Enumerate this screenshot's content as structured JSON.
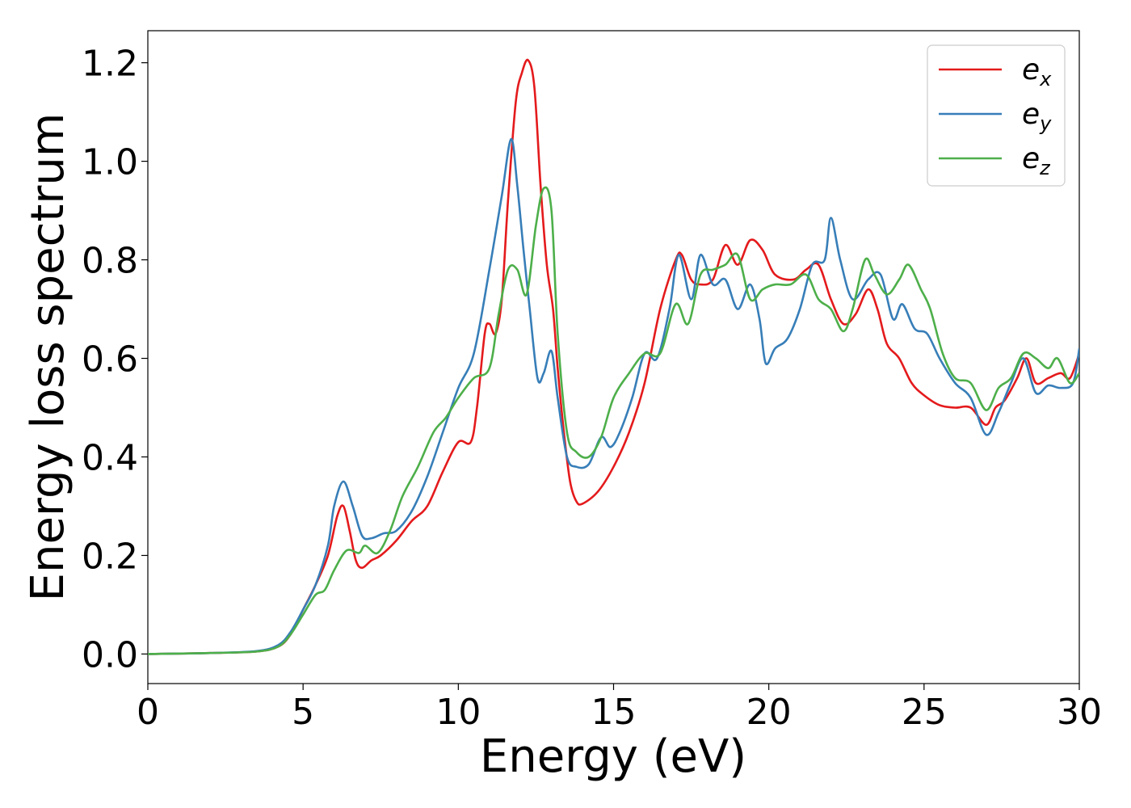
{
  "chart_data": {
    "type": "line",
    "title": "",
    "xlabel": "Energy (eV)",
    "ylabel": "Energy loss spectrum",
    "xlim": [
      0,
      30
    ],
    "ylim": [
      -0.06,
      1.265
    ],
    "xticks": [
      0,
      5,
      10,
      15,
      20,
      25,
      30
    ],
    "xtick_labels": [
      "0",
      "5",
      "10",
      "15",
      "20",
      "25",
      "30"
    ],
    "yticks": [
      0.0,
      0.2,
      0.4,
      0.6,
      0.8,
      1.0,
      1.2
    ],
    "ytick_labels": [
      "0.0",
      "0.2",
      "0.4",
      "0.6",
      "0.8",
      "1.0",
      "1.2"
    ],
    "grid": false,
    "legend_position": "top-right",
    "series": [
      {
        "name": "e_x",
        "legend_base": "e",
        "legend_sub": "x",
        "color": "#e41a1c",
        "points": [
          [
            0,
            0.0
          ],
          [
            2,
            0.002
          ],
          [
            3.5,
            0.005
          ],
          [
            4.2,
            0.015
          ],
          [
            4.6,
            0.04
          ],
          [
            5.0,
            0.09
          ],
          [
            5.4,
            0.14
          ],
          [
            5.8,
            0.2
          ],
          [
            6.1,
            0.28
          ],
          [
            6.3,
            0.3
          ],
          [
            6.5,
            0.25
          ],
          [
            6.7,
            0.19
          ],
          [
            6.9,
            0.175
          ],
          [
            7.2,
            0.19
          ],
          [
            7.5,
            0.2
          ],
          [
            8.0,
            0.23
          ],
          [
            8.5,
            0.27
          ],
          [
            9.0,
            0.3
          ],
          [
            9.5,
            0.37
          ],
          [
            10.0,
            0.43
          ],
          [
            10.4,
            0.43
          ],
          [
            10.6,
            0.5
          ],
          [
            10.85,
            0.65
          ],
          [
            11.0,
            0.67
          ],
          [
            11.2,
            0.65
          ],
          [
            11.4,
            0.72
          ],
          [
            11.6,
            0.92
          ],
          [
            11.85,
            1.12
          ],
          [
            12.05,
            1.18
          ],
          [
            12.25,
            1.205
          ],
          [
            12.45,
            1.15
          ],
          [
            12.65,
            0.95
          ],
          [
            12.85,
            0.79
          ],
          [
            13.05,
            0.7
          ],
          [
            13.2,
            0.58
          ],
          [
            13.4,
            0.45
          ],
          [
            13.6,
            0.35
          ],
          [
            13.8,
            0.31
          ],
          [
            14.0,
            0.305
          ],
          [
            14.5,
            0.33
          ],
          [
            15.0,
            0.38
          ],
          [
            15.5,
            0.45
          ],
          [
            16.0,
            0.55
          ],
          [
            16.5,
            0.7
          ],
          [
            17.0,
            0.8
          ],
          [
            17.2,
            0.81
          ],
          [
            17.5,
            0.76
          ],
          [
            17.8,
            0.75
          ],
          [
            18.2,
            0.76
          ],
          [
            18.6,
            0.83
          ],
          [
            19.0,
            0.79
          ],
          [
            19.4,
            0.84
          ],
          [
            19.8,
            0.82
          ],
          [
            20.2,
            0.77
          ],
          [
            20.8,
            0.76
          ],
          [
            21.2,
            0.78
          ],
          [
            21.6,
            0.79
          ],
          [
            22.0,
            0.72
          ],
          [
            22.4,
            0.67
          ],
          [
            22.8,
            0.69
          ],
          [
            23.2,
            0.74
          ],
          [
            23.5,
            0.7
          ],
          [
            23.8,
            0.63
          ],
          [
            24.2,
            0.6
          ],
          [
            24.6,
            0.55
          ],
          [
            25.0,
            0.525
          ],
          [
            25.5,
            0.505
          ],
          [
            26.0,
            0.5
          ],
          [
            26.5,
            0.5
          ],
          [
            27.0,
            0.465
          ],
          [
            27.3,
            0.5
          ],
          [
            27.6,
            0.515
          ],
          [
            28.0,
            0.56
          ],
          [
            28.3,
            0.6
          ],
          [
            28.6,
            0.55
          ],
          [
            29.0,
            0.56
          ],
          [
            29.4,
            0.57
          ],
          [
            29.7,
            0.56
          ],
          [
            30.0,
            0.61
          ]
        ]
      },
      {
        "name": "e_y",
        "legend_base": "e",
        "legend_sub": "y",
        "color": "#377eb8",
        "points": [
          [
            0,
            0.0
          ],
          [
            2,
            0.002
          ],
          [
            3.5,
            0.006
          ],
          [
            4.2,
            0.018
          ],
          [
            4.6,
            0.045
          ],
          [
            5.0,
            0.09
          ],
          [
            5.4,
            0.14
          ],
          [
            5.8,
            0.22
          ],
          [
            6.0,
            0.3
          ],
          [
            6.3,
            0.35
          ],
          [
            6.6,
            0.3
          ],
          [
            6.9,
            0.24
          ],
          [
            7.2,
            0.235
          ],
          [
            7.6,
            0.245
          ],
          [
            8.0,
            0.25
          ],
          [
            8.5,
            0.29
          ],
          [
            9.0,
            0.36
          ],
          [
            9.5,
            0.45
          ],
          [
            10.0,
            0.54
          ],
          [
            10.5,
            0.61
          ],
          [
            11.0,
            0.78
          ],
          [
            11.4,
            0.93
          ],
          [
            11.7,
            1.045
          ],
          [
            11.9,
            0.95
          ],
          [
            12.1,
            0.82
          ],
          [
            12.3,
            0.7
          ],
          [
            12.55,
            0.56
          ],
          [
            12.75,
            0.57
          ],
          [
            13.0,
            0.615
          ],
          [
            13.2,
            0.52
          ],
          [
            13.5,
            0.4
          ],
          [
            13.8,
            0.38
          ],
          [
            14.2,
            0.385
          ],
          [
            14.6,
            0.44
          ],
          [
            14.9,
            0.42
          ],
          [
            15.2,
            0.45
          ],
          [
            15.6,
            0.52
          ],
          [
            16.0,
            0.61
          ],
          [
            16.4,
            0.6
          ],
          [
            16.8,
            0.7
          ],
          [
            17.1,
            0.81
          ],
          [
            17.5,
            0.72
          ],
          [
            17.8,
            0.81
          ],
          [
            18.2,
            0.75
          ],
          [
            18.6,
            0.76
          ],
          [
            19.0,
            0.7
          ],
          [
            19.4,
            0.75
          ],
          [
            19.7,
            0.68
          ],
          [
            19.9,
            0.59
          ],
          [
            20.2,
            0.62
          ],
          [
            20.6,
            0.64
          ],
          [
            21.0,
            0.7
          ],
          [
            21.4,
            0.79
          ],
          [
            21.8,
            0.8
          ],
          [
            22.0,
            0.885
          ],
          [
            22.3,
            0.8
          ],
          [
            22.7,
            0.72
          ],
          [
            23.2,
            0.76
          ],
          [
            23.6,
            0.77
          ],
          [
            24.0,
            0.68
          ],
          [
            24.3,
            0.71
          ],
          [
            24.7,
            0.66
          ],
          [
            25.1,
            0.65
          ],
          [
            25.5,
            0.6
          ],
          [
            26.0,
            0.55
          ],
          [
            26.5,
            0.52
          ],
          [
            27.0,
            0.445
          ],
          [
            27.4,
            0.49
          ],
          [
            27.8,
            0.55
          ],
          [
            28.2,
            0.6
          ],
          [
            28.6,
            0.53
          ],
          [
            29.0,
            0.545
          ],
          [
            29.4,
            0.54
          ],
          [
            29.8,
            0.55
          ],
          [
            30.0,
            0.62
          ]
        ]
      },
      {
        "name": "e_z",
        "legend_base": "e",
        "legend_sub": "z",
        "color": "#4daf4a",
        "points": [
          [
            0,
            0.0
          ],
          [
            2,
            0.002
          ],
          [
            3.5,
            0.005
          ],
          [
            4.2,
            0.015
          ],
          [
            4.6,
            0.04
          ],
          [
            5.0,
            0.08
          ],
          [
            5.4,
            0.12
          ],
          [
            5.7,
            0.13
          ],
          [
            6.0,
            0.17
          ],
          [
            6.4,
            0.21
          ],
          [
            6.8,
            0.205
          ],
          [
            7.0,
            0.22
          ],
          [
            7.4,
            0.205
          ],
          [
            7.8,
            0.25
          ],
          [
            8.2,
            0.32
          ],
          [
            8.7,
            0.38
          ],
          [
            9.2,
            0.45
          ],
          [
            9.6,
            0.48
          ],
          [
            10.0,
            0.52
          ],
          [
            10.5,
            0.56
          ],
          [
            11.0,
            0.58
          ],
          [
            11.3,
            0.69
          ],
          [
            11.6,
            0.78
          ],
          [
            11.9,
            0.78
          ],
          [
            12.2,
            0.73
          ],
          [
            12.5,
            0.87
          ],
          [
            12.75,
            0.945
          ],
          [
            13.0,
            0.9
          ],
          [
            13.2,
            0.65
          ],
          [
            13.5,
            0.45
          ],
          [
            13.8,
            0.41
          ],
          [
            14.2,
            0.4
          ],
          [
            14.6,
            0.44
          ],
          [
            15.0,
            0.52
          ],
          [
            15.5,
            0.57
          ],
          [
            16.0,
            0.61
          ],
          [
            16.5,
            0.61
          ],
          [
            17.0,
            0.71
          ],
          [
            17.4,
            0.67
          ],
          [
            17.8,
            0.77
          ],
          [
            18.2,
            0.78
          ],
          [
            18.6,
            0.79
          ],
          [
            19.0,
            0.81
          ],
          [
            19.4,
            0.72
          ],
          [
            19.8,
            0.74
          ],
          [
            20.2,
            0.75
          ],
          [
            20.7,
            0.75
          ],
          [
            21.2,
            0.77
          ],
          [
            21.6,
            0.72
          ],
          [
            22.0,
            0.7
          ],
          [
            22.4,
            0.655
          ],
          [
            22.7,
            0.7
          ],
          [
            23.1,
            0.8
          ],
          [
            23.4,
            0.77
          ],
          [
            23.8,
            0.73
          ],
          [
            24.2,
            0.76
          ],
          [
            24.5,
            0.79
          ],
          [
            24.9,
            0.74
          ],
          [
            25.2,
            0.7
          ],
          [
            25.6,
            0.61
          ],
          [
            26.0,
            0.56
          ],
          [
            26.5,
            0.55
          ],
          [
            27.0,
            0.495
          ],
          [
            27.4,
            0.54
          ],
          [
            27.8,
            0.56
          ],
          [
            28.2,
            0.61
          ],
          [
            28.6,
            0.6
          ],
          [
            29.0,
            0.58
          ],
          [
            29.3,
            0.6
          ],
          [
            29.7,
            0.55
          ],
          [
            30.0,
            0.57
          ]
        ]
      }
    ]
  }
}
